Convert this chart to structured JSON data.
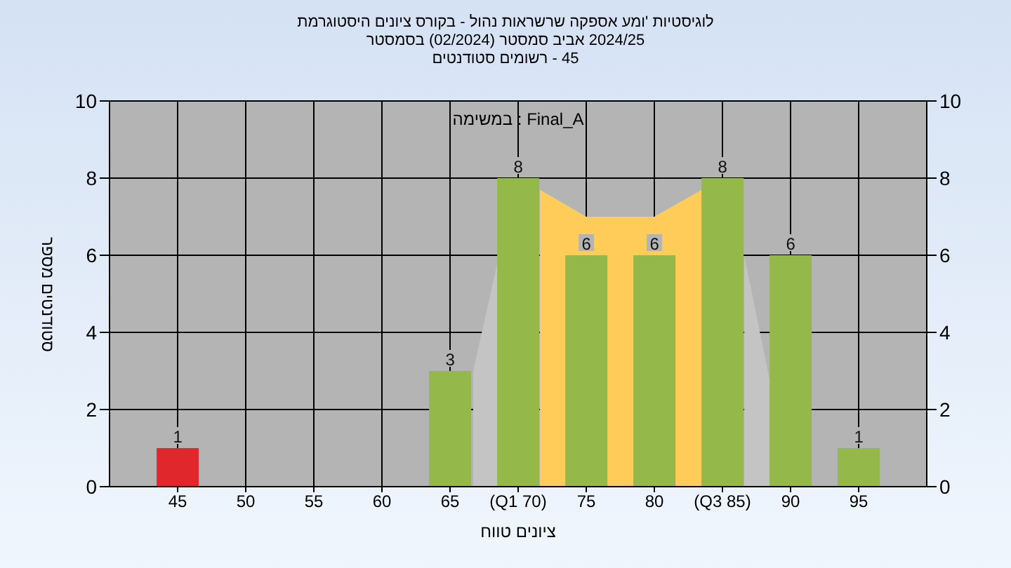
{
  "chart_data": {
    "type": "bar",
    "title": "היסטוגרמת ציונים בקורס - נהול שרשראות אספקה ומע' לוגיסטיות",
    "subtitle": "בסמסטר (02/2024) סמסטר אביב 2024/25\nסטודנטים רשומים - 45",
    "xlabel": "טווח ציונים",
    "ylabel": "מספר סטודנטים",
    "annotations": [
      "במשימה : Final_A"
    ],
    "series": [
      {
        "type": "area",
        "color": "#c4c4c4",
        "x": [
          66.7,
          68.6
        ],
        "values": [
          3,
          6
        ]
      },
      {
        "type": "area",
        "color": "#c4c4c4",
        "x": [
          86.6,
          88.5
        ],
        "values": [
          6,
          2.7
        ]
      },
      {
        "type": "area",
        "color": "#ffcc5a",
        "x": [
          71.6,
          75,
          80,
          83.5
        ],
        "values": [
          7.7,
          7,
          7,
          7.7
        ]
      },
      {
        "x": [
          45,
          50,
          55,
          60,
          65,
          70,
          75,
          80,
          85,
          90,
          95
        ],
        "colors": [
          "#e0282c",
          "#94b84a",
          "#94b84a",
          "#94b84a",
          "#94b84a",
          "#94b84a",
          "#94b84a",
          "#94b84a",
          "#94b84a",
          "#94b84a",
          "#94b84a"
        ],
        "values": [
          1,
          0,
          0,
          0,
          3,
          8,
          6,
          6,
          8,
          6,
          1
        ],
        "value_labels": [
          "1",
          null,
          null,
          null,
          "3",
          "8",
          "6",
          "6",
          "8",
          "6",
          "1"
        ]
      }
    ],
    "xlim": [
      40,
      100
    ],
    "xticks": [
      45,
      50,
      55,
      60,
      65,
      {
        "value": 70,
        "label": "(Q1 70)"
      },
      75,
      80,
      {
        "value": 85,
        "label": "(Q3 85)"
      },
      90,
      95
    ],
    "ylim": [
      0,
      10
    ],
    "yticks": [
      0,
      2,
      4,
      6,
      8,
      10
    ],
    "y2lim": [
      0,
      10
    ],
    "y2ticks": [
      0,
      2,
      4,
      6,
      8,
      10
    ],
    "grid": true
  }
}
